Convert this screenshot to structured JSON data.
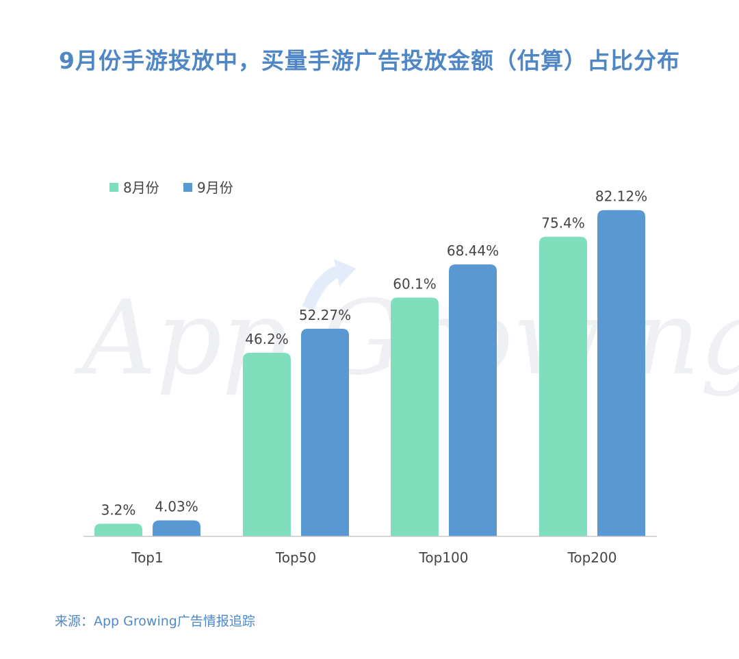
{
  "title": "9月份手游投放中，买量手游广告投放金额（估算）占比分布",
  "source": "来源：App Growing广告情报追踪",
  "watermark": "App Growing",
  "colors": {
    "title": "#4e86c6",
    "aug": "#7fdfbd",
    "sep": "#5a98d3",
    "axis": "#c8c8c8",
    "label": "#444444",
    "watermark": "#eef0f3"
  },
  "chart_data": {
    "type": "bar",
    "categories": [
      "Top1",
      "Top50",
      "Top100",
      "Top200"
    ],
    "series": [
      {
        "name": "8月份",
        "values": [
          3.2,
          46.2,
          60.1,
          75.4
        ],
        "labels": [
          "3.2%",
          "46.2%",
          "60.1%",
          "75.4%"
        ],
        "color": "#7fdfbd"
      },
      {
        "name": "9月份",
        "values": [
          4.03,
          52.27,
          68.44,
          82.12
        ],
        "labels": [
          "4.03%",
          "52.27%",
          "68.44%",
          "82.12%"
        ],
        "color": "#5a98d3"
      }
    ],
    "ylim": [
      0,
      100
    ],
    "grid": false,
    "legend": "top-left"
  }
}
